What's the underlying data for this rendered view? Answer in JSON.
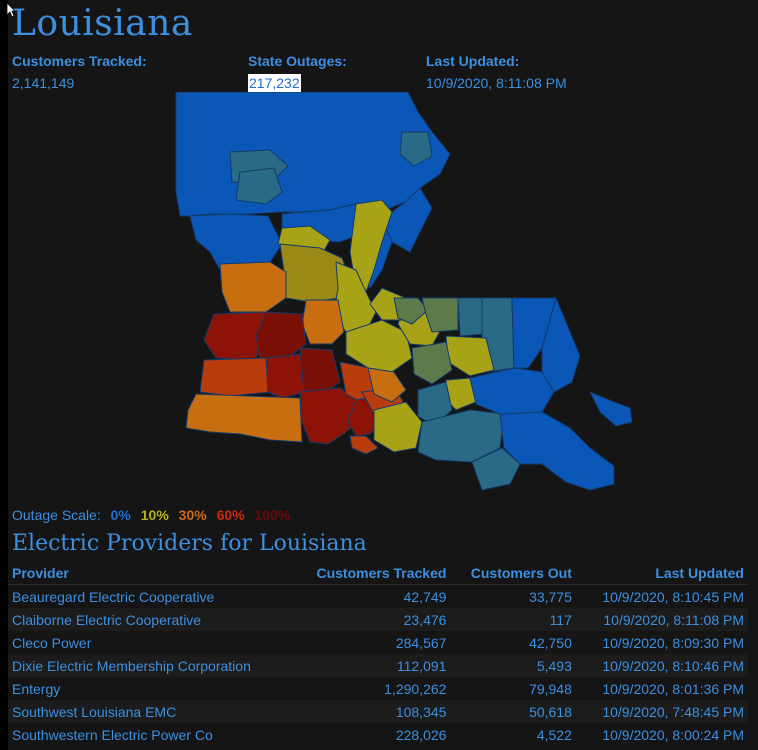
{
  "state": {
    "title": "Louisiana"
  },
  "stats": {
    "customers_label": "Customers Tracked:",
    "customers_value": "2,141,149",
    "outages_label": "State Outages:",
    "outages_value": "217,232",
    "updated_label": "Last Updated:",
    "updated_value": "10/9/2020, 8:11:08 PM"
  },
  "scale": {
    "label": "Outage Scale:",
    "levels": [
      {
        "text": "0%",
        "color": "#1f6fd6"
      },
      {
        "text": "10%",
        "color": "#b8b21a"
      },
      {
        "text": "30%",
        "color": "#d06a1a"
      },
      {
        "text": "60%",
        "color": "#cc2a10"
      },
      {
        "text": "100%",
        "color": "#6a0a0a"
      }
    ]
  },
  "colors": {
    "accent": "#3d8fe0",
    "blue": "#0b57b8",
    "teal": "#2a6a86",
    "olive": "#5d7a4a",
    "yellow": "#a8a216",
    "orange": "#c76f10",
    "red_orange": "#b93d0c",
    "red": "#8c1306"
  },
  "providers": {
    "title": "Electric Providers for Louisiana",
    "headers": [
      "Provider",
      "Customers Tracked",
      "Customers Out",
      "Last Updated"
    ],
    "rows": [
      [
        "Beauregard Electric Cooperative",
        "42,749",
        "33,775",
        "10/9/2020, 8:10:45 PM"
      ],
      [
        "Claiborne Electric Cooperative",
        "23,476",
        "117",
        "10/9/2020, 8:11:08 PM"
      ],
      [
        "Cleco Power",
        "284,567",
        "42,750",
        "10/9/2020, 8:09:30 PM"
      ],
      [
        "Dixie Electric Membership Corporation",
        "112,091",
        "5,493",
        "10/9/2020, 8:10:46 PM"
      ],
      [
        "Entergy",
        "1,290,262",
        "79,948",
        "10/9/2020, 8:01:36 PM"
      ],
      [
        "Southwest Louisiana EMC",
        "108,345",
        "50,618",
        "10/9/2020, 7:48:45 PM"
      ],
      [
        "Southwestern Electric Power Co",
        "228,026",
        "4,522",
        "10/9/2020, 8:00:24 PM"
      ]
    ]
  }
}
